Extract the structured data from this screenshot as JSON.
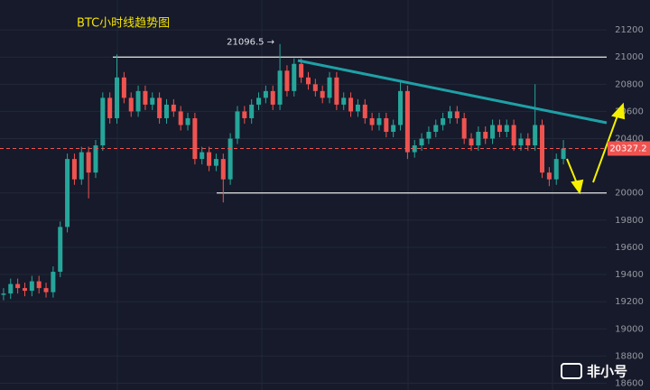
{
  "chart_data": {
    "type": "candlestick",
    "title": "BTC小时线趋势图",
    "annotation": "21096.5 →",
    "colors": {
      "up": "#26a69a",
      "down": "#ef5350"
    },
    "ylim": [
      18550,
      21420
    ],
    "yticks": [
      18600,
      18800,
      19000,
      19200,
      19400,
      19600,
      19800,
      20000,
      20400,
      20600,
      20800,
      21000,
      21200
    ],
    "grid": true,
    "hlines": [
      21000,
      20000
    ],
    "last_price": 20327.2,
    "watermark": "非小号",
    "open": [
      19250,
      19260,
      19330,
      19300,
      19280,
      19350,
      19300,
      19270,
      19420,
      19750,
      20250,
      20100,
      20300,
      20150,
      20350,
      20700,
      20550,
      20850,
      20700,
      20600,
      20750,
      20650,
      20700,
      20550,
      20650,
      20600,
      20500,
      20550,
      20250,
      20300,
      20200,
      20250,
      20100,
      20400,
      20600,
      20550,
      20650,
      20700,
      20750,
      20650,
      20900,
      20750,
      20950,
      20850,
      20800,
      20750,
      20700,
      20850,
      20650,
      20700,
      20600,
      20650,
      20550,
      20500,
      20550,
      20450,
      20500,
      20750,
      20300,
      20350,
      20400,
      20450,
      20500,
      20550,
      20600,
      20550,
      20400,
      20350,
      20450,
      20400,
      20500,
      20450,
      20500,
      20350,
      20400,
      20350,
      20500,
      20150,
      20100,
      20250
    ],
    "high": [
      19300,
      19370,
      19370,
      19340,
      19390,
      19390,
      19340,
      19460,
      19790,
      20290,
      20290,
      20340,
      20340,
      20390,
      20740,
      20740,
      21020,
      20890,
      20740,
      20790,
      20790,
      20740,
      20740,
      20690,
      20690,
      20640,
      20590,
      20590,
      20340,
      20340,
      20290,
      20290,
      20440,
      20640,
      20640,
      20690,
      20740,
      20790,
      20790,
      21096.5,
      20940,
      20990,
      20990,
      20890,
      20840,
      20790,
      20890,
      20890,
      20740,
      20740,
      20690,
      20690,
      20590,
      20590,
      20590,
      20540,
      20830,
      20790,
      20390,
      20440,
      20490,
      20540,
      20590,
      20640,
      20640,
      20590,
      20440,
      20490,
      20490,
      20540,
      20540,
      20540,
      20540,
      20440,
      20440,
      20800,
      20540,
      20190,
      20290,
      20390
    ],
    "low": [
      19210,
      19220,
      19260,
      19240,
      19240,
      19260,
      19230,
      19230,
      19380,
      19710,
      20060,
      20060,
      19960,
      20110,
      20310,
      20510,
      20510,
      20660,
      20560,
      20560,
      20610,
      20610,
      20510,
      20510,
      20560,
      20460,
      20460,
      20210,
      20210,
      20160,
      20160,
      19930,
      20060,
      20360,
      20510,
      20510,
      20610,
      20660,
      20610,
      20610,
      20710,
      20710,
      20810,
      20760,
      20710,
      20660,
      20660,
      20610,
      20610,
      20560,
      20560,
      20510,
      20460,
      20460,
      20410,
      20410,
      20460,
      20250,
      20260,
      20310,
      20360,
      20410,
      20460,
      20510,
      20510,
      20360,
      20310,
      20310,
      20360,
      20360,
      20410,
      20410,
      20310,
      20310,
      20310,
      20310,
      20110,
      20050,
      20060,
      20210
    ],
    "close": [
      19260,
      19330,
      19300,
      19280,
      19350,
      19300,
      19270,
      19420,
      19750,
      20250,
      20100,
      20300,
      20150,
      20350,
      20700,
      20550,
      20850,
      20700,
      20600,
      20750,
      20650,
      20700,
      20550,
      20650,
      20600,
      20500,
      20550,
      20250,
      20300,
      20200,
      20250,
      20100,
      20400,
      20600,
      20550,
      20650,
      20700,
      20750,
      20650,
      20900,
      20750,
      20950,
      20850,
      20800,
      20750,
      20700,
      20850,
      20650,
      20700,
      20600,
      20650,
      20550,
      20500,
      20550,
      20450,
      20500,
      20750,
      20300,
      20350,
      20400,
      20450,
      20500,
      20550,
      20600,
      20550,
      20400,
      20350,
      20450,
      20400,
      20500,
      20450,
      20500,
      20350,
      20400,
      20350,
      20500,
      20150,
      20100,
      20250,
      20327.2
    ]
  }
}
